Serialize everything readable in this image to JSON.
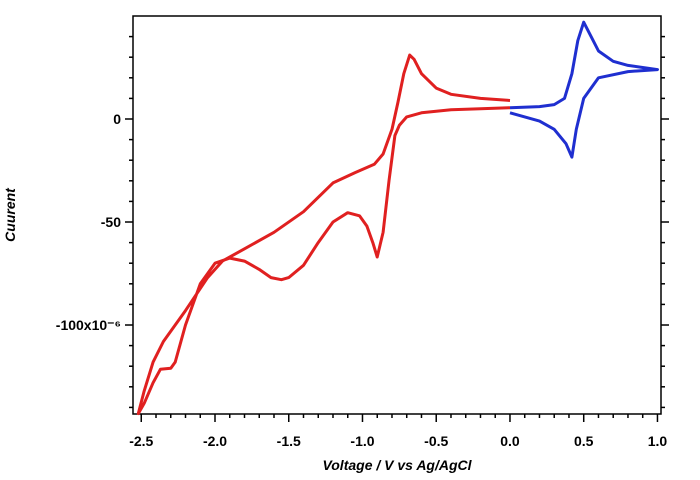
{
  "chart_data": {
    "type": "line",
    "xlabel": "Voltage / V vs Ag/AgCl",
    "ylabel": "Cuurent",
    "xlim": [
      -2.556,
      1.024
    ],
    "ylim": [
      -143.2,
      50
    ],
    "xticks": [
      -2.5,
      {
        "value": -2,
        "label": "-2.0"
      },
      -1.5,
      {
        "value": -1,
        "label": "-1.0"
      },
      -0.5,
      {
        "value": 0,
        "label": "0.0"
      },
      0.5,
      {
        "value": 1,
        "label": "1.0"
      }
    ],
    "yticks": [
      {
        "value": -100,
        "label": "-100x10⁻⁶"
      },
      -50,
      0
    ],
    "xminorticks": [
      -2.4,
      -2.3,
      -2.2,
      -2.1,
      -1.9,
      -1.8,
      -1.7,
      -1.6,
      -1.4,
      -1.3,
      -1.2,
      -1.1,
      -0.9,
      -0.8,
      -0.7,
      -0.6,
      -0.4,
      -0.3,
      -0.2,
      -0.1,
      0.1,
      0.2,
      0.3,
      0.4,
      0.6,
      0.7,
      0.8,
      0.9
    ],
    "yminorticks": [
      -140,
      -130,
      -120,
      -110,
      -90,
      -80,
      -70,
      -60,
      -40,
      -30,
      -20,
      -10,
      10,
      20,
      30,
      40
    ],
    "series": [
      {
        "color": "#e02020",
        "x": [
          0,
          -0.2,
          -0.4,
          -0.6,
          -0.7,
          -0.75,
          -0.78,
          -0.82,
          -0.86,
          -0.9,
          -0.93,
          -0.97,
          -1.02,
          -1.1,
          -1.2,
          -1.3,
          -1.4,
          -1.5,
          -1.55,
          -1.62,
          -1.7,
          -1.8,
          -1.9,
          -2.0,
          -2.1,
          -2.2,
          -2.27,
          -2.3,
          -2.37,
          -2.42,
          -2.48,
          -2.52,
          -2.48,
          -2.42,
          -2.35,
          -2.2,
          -2.05,
          -1.95,
          -1.8,
          -1.6,
          -1.4,
          -1.2,
          -1.05,
          -0.92,
          -0.86,
          -0.8,
          -0.76,
          -0.72,
          -0.68,
          -0.65,
          -0.6,
          -0.5,
          -0.4,
          -0.2,
          0
        ],
        "values": [
          5.5,
          5,
          4.5,
          3,
          1,
          -3,
          -8,
          -30,
          -55,
          -67,
          -60,
          -52,
          -47,
          -45.5,
          -50,
          -60,
          -71,
          -77,
          -78,
          -77,
          -73,
          -69,
          -67.5,
          -70,
          -80,
          -100,
          -118,
          -121,
          -121.5,
          -128,
          -138,
          -143,
          -132,
          -118,
          -108,
          -93,
          -77,
          -69,
          -63,
          -55,
          -45,
          -31,
          -26,
          -22,
          -17,
          -5,
          8,
          22,
          31,
          29,
          22,
          15,
          12,
          10,
          9
        ]
      },
      {
        "color": "#1f2fd0",
        "x": [
          0,
          0.2,
          0.3,
          0.37,
          0.42,
          0.46,
          0.5,
          0.55,
          0.6,
          0.7,
          0.8,
          0.9,
          1.0,
          0.8,
          0.6,
          0.5,
          0.45,
          0.42,
          0.38,
          0.3,
          0.2,
          0
        ],
        "values": [
          5.5,
          6,
          7,
          10,
          22,
          38,
          47,
          40,
          33,
          28,
          26,
          25,
          24,
          23,
          20,
          10,
          -5,
          -18.5,
          -12,
          -5,
          -1,
          3
        ]
      }
    ]
  }
}
